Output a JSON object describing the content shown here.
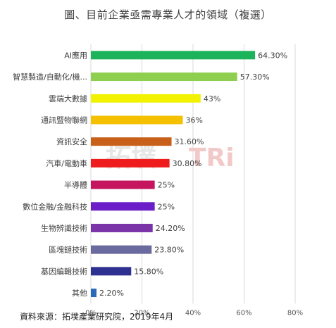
{
  "chart_data": {
    "type": "bar",
    "orientation": "horizontal",
    "title": "圖、目前企業亟需專業人才的領域（複選）",
    "categories": [
      "AI應用",
      "智慧製造/自動化/機...",
      "雲端大數據",
      "通訊暨物聯網",
      "資訊安全",
      "汽車/電動車",
      "半導體",
      "數位金融/金融科技",
      "生物辨識技術",
      "區塊鏈技術",
      "基因編輯技術",
      "其他"
    ],
    "values": [
      64.3,
      57.3,
      43,
      36,
      31.6,
      30.8,
      25,
      25,
      24.2,
      23.8,
      15.8,
      2.2
    ],
    "value_labels": [
      "64.30%",
      "57.30%",
      "43%",
      "36%",
      "31.60%",
      "30.80%",
      "25%",
      "25%",
      "24.20%",
      "23.80%",
      "15.80%",
      "2.20%"
    ],
    "colors": [
      "#1db35a",
      "#8fcf4f",
      "#f2f200",
      "#f5c000",
      "#c8601a",
      "#ee1c1c",
      "#c4155e",
      "#6b1ec8",
      "#7b33a8",
      "#6b6a9e",
      "#2e3192",
      "#2a6ab8"
    ],
    "xlim": [
      0,
      80
    ],
    "x_ticks": [
      "0%",
      "20%",
      "40%",
      "60%",
      "80%"
    ],
    "grid": true,
    "legend": "none"
  },
  "watermark": {
    "main": "拓墣",
    "brand": "TRi"
  },
  "source": "資料來源：拓墣產業研究院，2019年4月"
}
